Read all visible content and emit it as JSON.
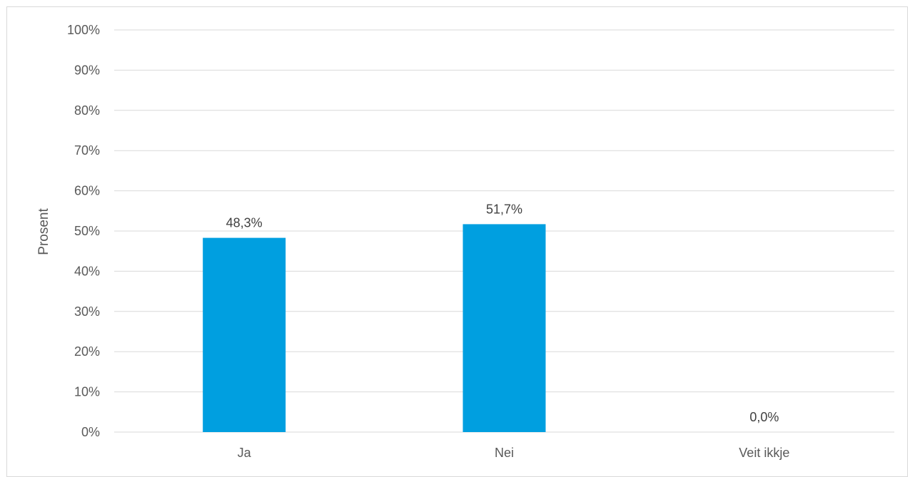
{
  "chart_data": {
    "type": "bar",
    "categories": [
      "Ja",
      "Nei",
      "Veit ikkje"
    ],
    "values": [
      48.3,
      51.7,
      0.0
    ],
    "data_labels": [
      "48,3%",
      "51,7%",
      "0,0%"
    ],
    "title": "",
    "xlabel": "",
    "ylabel": "Prosent",
    "ylim": [
      0,
      100
    ],
    "yticks": [
      0,
      10,
      20,
      30,
      40,
      50,
      60,
      70,
      80,
      90,
      100
    ],
    "ytick_labels": [
      "0%",
      "10%",
      "20%",
      "30%",
      "40%",
      "50%",
      "60%",
      "70%",
      "80%",
      "90%",
      "100%"
    ],
    "grid": true,
    "legend": "none",
    "bar_color": "#009fe0",
    "grid_color": "#d9d9d9"
  }
}
